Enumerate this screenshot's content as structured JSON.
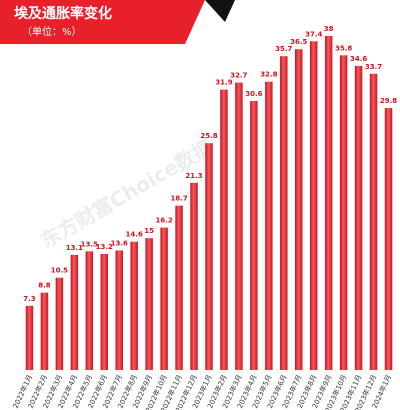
{
  "chart_data": {
    "type": "bar",
    "title": "埃及通胀率变化",
    "subtitle": "（单位：%）",
    "watermark": "东方财富Choice数据",
    "color": "#e8202a",
    "categories": [
      "2022年1月",
      "2022年2月",
      "2022年3月",
      "2022年4月",
      "2022年5月",
      "2022年6月",
      "2022年7月",
      "2022年8月",
      "2022年9月",
      "2022年10月",
      "2022年11月",
      "2022年12月",
      "2023年1月",
      "2023年2月",
      "2023年3月",
      "2023年4月",
      "2023年5月",
      "2023年6月",
      "2023年7月",
      "2023年8月",
      "2023年9月",
      "2023年10月",
      "2023年11月",
      "2023年12月",
      "2024年1月"
    ],
    "values": [
      7.3,
      8.8,
      10.5,
      13.1,
      13.5,
      13.2,
      13.6,
      14.6,
      15,
      16.2,
      18.7,
      21.3,
      25.8,
      31.9,
      32.7,
      30.6,
      32.8,
      35.7,
      36.5,
      37.4,
      38,
      35.8,
      34.6,
      33.7,
      29.8
    ]
  }
}
